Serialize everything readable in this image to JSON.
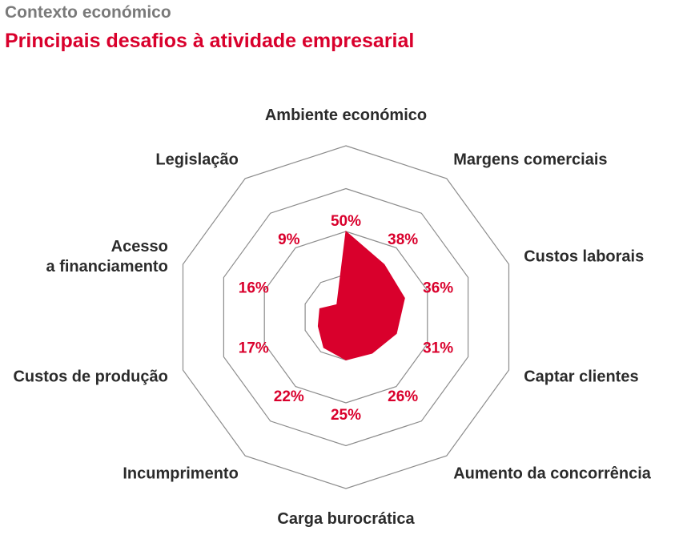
{
  "header": {
    "supertitle": "Contexto económico",
    "title": "Principais desafios à atividade empresarial"
  },
  "colors": {
    "accent": "#d9002c",
    "grid": "#8c8c8c",
    "label": "#2b2b2b",
    "supertitle": "#7a7a7a"
  },
  "chart_data": {
    "type": "radar",
    "title": "Principais desafios à atividade empresarial",
    "unit": "%",
    "rmax": 100,
    "rings": [
      25,
      50,
      75,
      100
    ],
    "categories": [
      "Ambiente económico",
      "Margens comerciais",
      "Custos laborais",
      "Captar clientes",
      "Aumento da concorrência",
      "Carga burocrática",
      "Incumprimento",
      "Custos de produção",
      "Acesso a financiamento",
      "Legislação"
    ],
    "axis_labels": [
      [
        "Ambiente económico"
      ],
      [
        "Margens comerciais"
      ],
      [
        "Custos laborais"
      ],
      [
        "Captar clientes"
      ],
      [
        "Aumento da concorrência"
      ],
      [
        "Carga burocrática"
      ],
      [
        "Incumprimento"
      ],
      [
        "Custos de produção"
      ],
      [
        "Acesso",
        "a financiamento"
      ],
      [
        "Legislação"
      ]
    ],
    "point_values": [
      50,
      38,
      36,
      31,
      26,
      25,
      22,
      17,
      16,
      9
    ],
    "point_labels": [
      "50%",
      "38%",
      "36%",
      "31%",
      "26%",
      "25%",
      "22%",
      "17%",
      "16%",
      "9%"
    ]
  }
}
